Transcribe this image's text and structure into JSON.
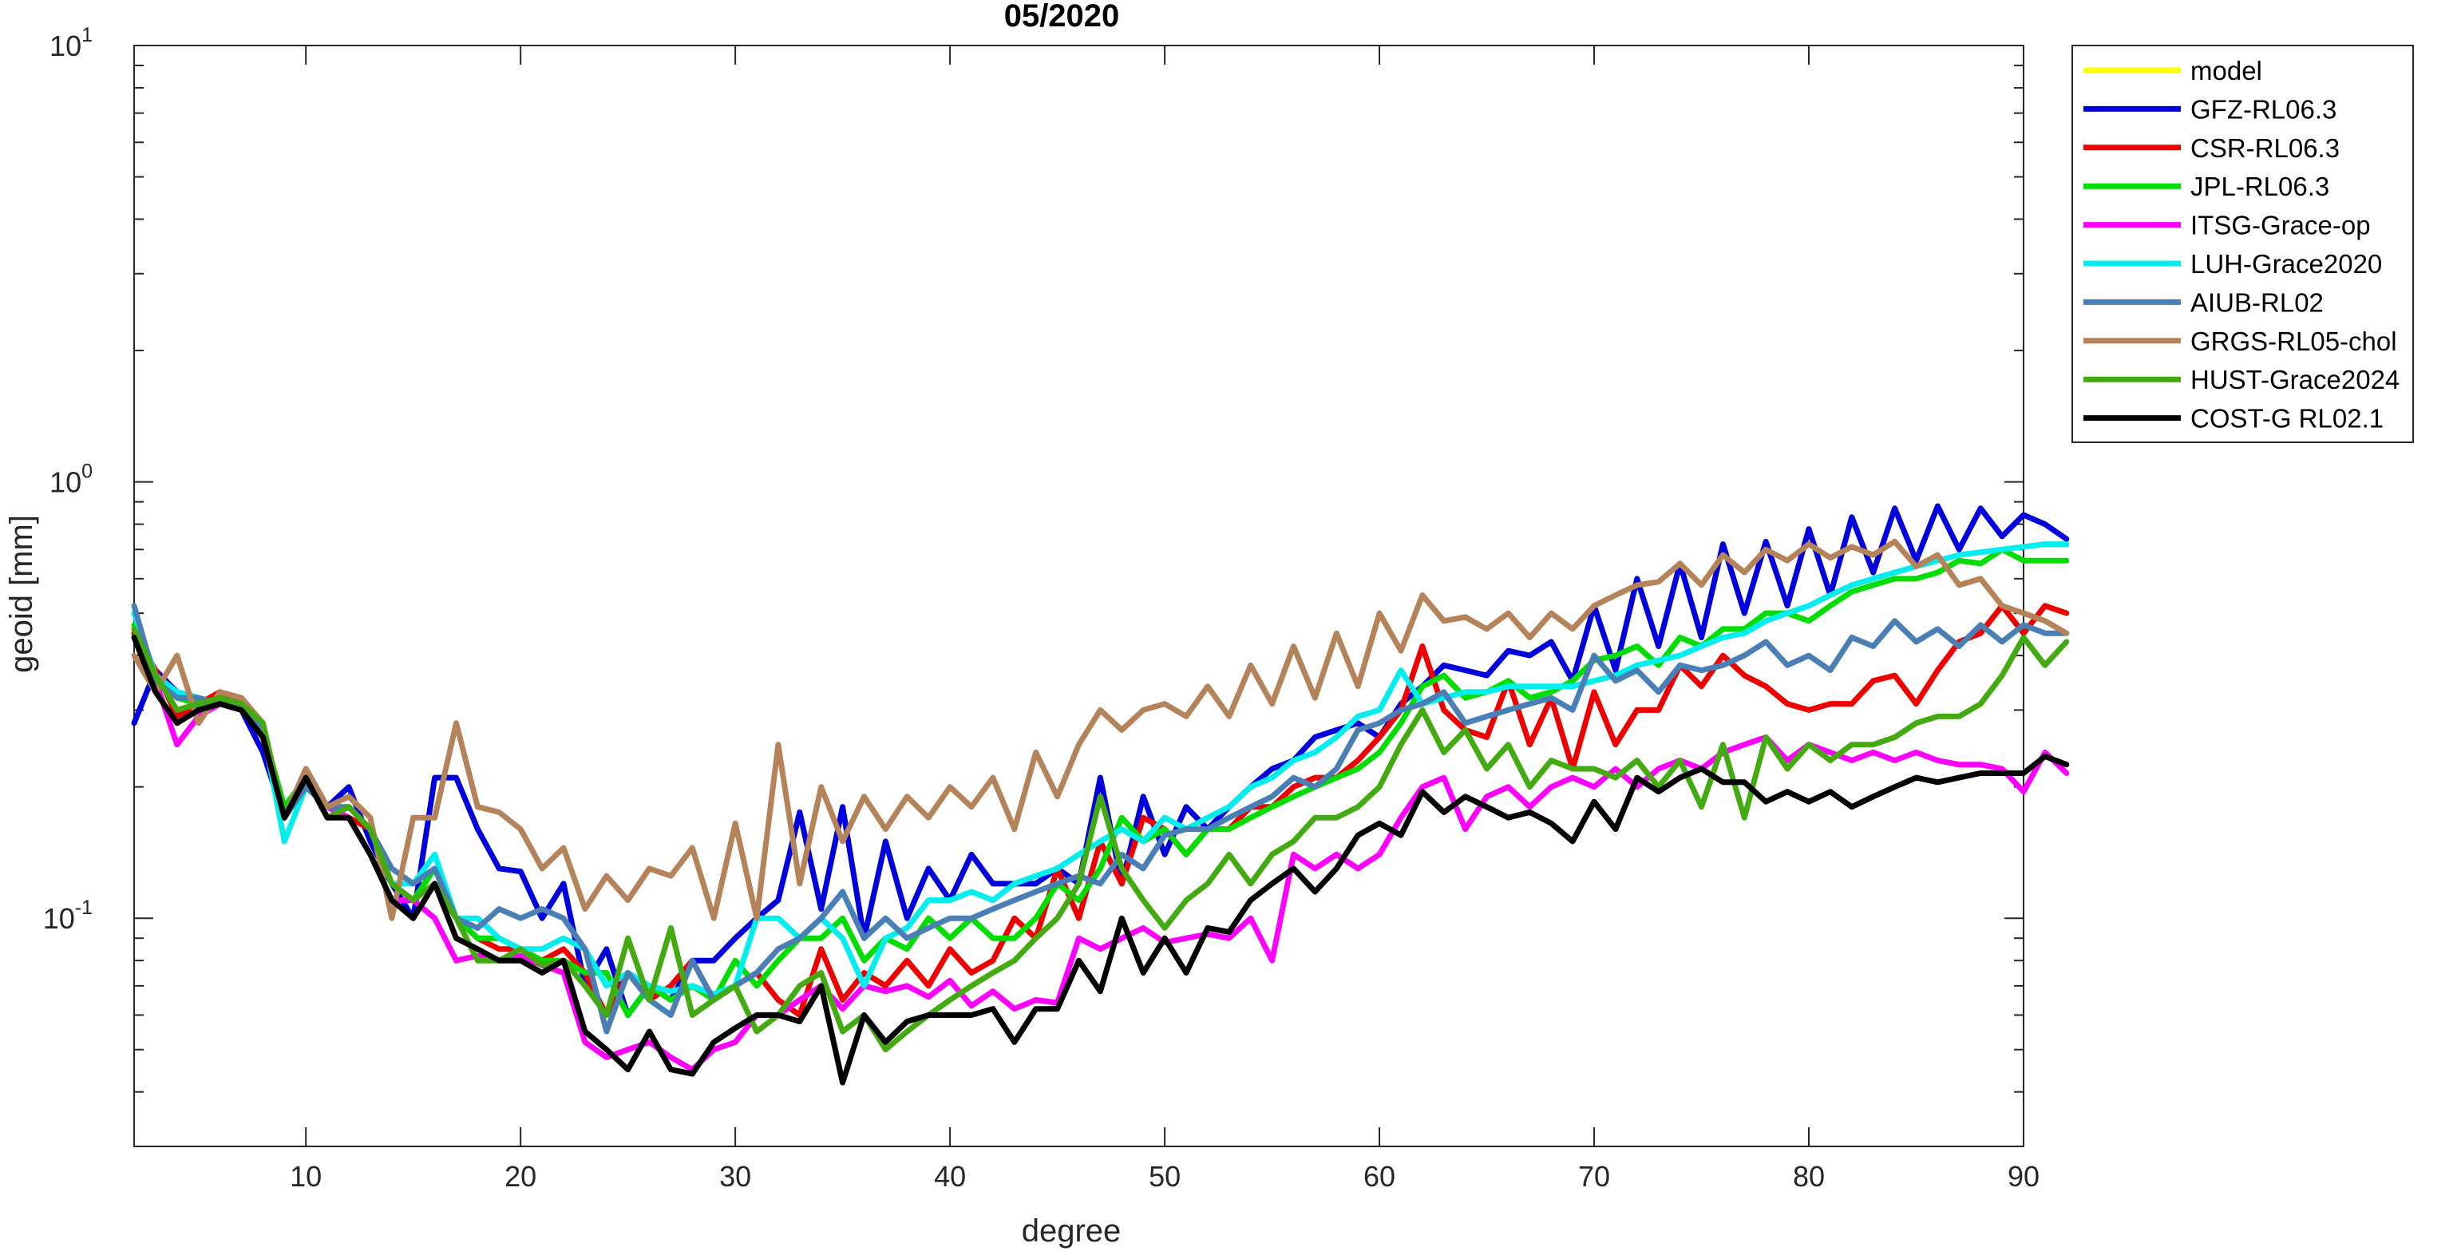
{
  "chart_data": {
    "type": "line",
    "title": "05/2020",
    "xlabel": "degree",
    "ylabel": "geoid [mm]",
    "xlim": [
      2,
      90
    ],
    "ylim": [
      0.03,
      10
    ],
    "yscale": "log",
    "xticks": [
      10,
      20,
      30,
      40,
      50,
      60,
      70,
      80,
      90
    ],
    "yticks": [
      {
        "value": 0.1,
        "base": "10",
        "exp": "-1"
      },
      {
        "value": 1,
        "base": "10",
        "exp": "0"
      },
      {
        "value": 10,
        "base": "10",
        "exp": "1"
      }
    ],
    "grid": false,
    "legend_position": "outside-top-right",
    "x_start": 2,
    "series": [
      {
        "name": "model",
        "color": "#ffff00",
        "values": []
      },
      {
        "name": "GFZ-RL06.3",
        "color": "#0000dd",
        "values": [
          0.28,
          0.37,
          0.33,
          0.32,
          0.31,
          0.3,
          0.24,
          0.17,
          0.22,
          0.18,
          0.2,
          0.15,
          0.12,
          0.1,
          0.21,
          0.21,
          0.16,
          0.13,
          0.128,
          0.1,
          0.12,
          0.07,
          0.085,
          0.06,
          0.07,
          0.065,
          0.08,
          0.08,
          0.09,
          0.1,
          0.11,
          0.175,
          0.105,
          0.18,
          0.09,
          0.15,
          0.1,
          0.13,
          0.11,
          0.14,
          0.12,
          0.12,
          0.12,
          0.13,
          0.12,
          0.21,
          0.12,
          0.19,
          0.14,
          0.18,
          0.16,
          0.18,
          0.2,
          0.22,
          0.23,
          0.26,
          0.27,
          0.28,
          0.26,
          0.31,
          0.34,
          0.38,
          0.37,
          0.36,
          0.41,
          0.4,
          0.43,
          0.35,
          0.52,
          0.37,
          0.6,
          0.42,
          0.65,
          0.44,
          0.72,
          0.5,
          0.73,
          0.52,
          0.78,
          0.55,
          0.83,
          0.62,
          0.87,
          0.66,
          0.88,
          0.7,
          0.87,
          0.75,
          0.84,
          0.8,
          0.74
        ]
      },
      {
        "name": "CSR-RL06.3",
        "color": "#ee0000",
        "values": [
          0.45,
          0.37,
          0.29,
          0.31,
          0.33,
          0.31,
          0.26,
          0.17,
          0.21,
          0.18,
          0.17,
          0.16,
          0.12,
          0.11,
          0.12,
          0.1,
          0.09,
          0.085,
          0.085,
          0.08,
          0.085,
          0.075,
          0.06,
          0.075,
          0.065,
          0.07,
          0.08,
          0.065,
          0.07,
          0.075,
          0.065,
          0.06,
          0.085,
          0.065,
          0.075,
          0.07,
          0.08,
          0.07,
          0.085,
          0.075,
          0.08,
          0.1,
          0.09,
          0.13,
          0.1,
          0.15,
          0.12,
          0.17,
          0.16,
          0.14,
          0.16,
          0.16,
          0.18,
          0.18,
          0.2,
          0.21,
          0.21,
          0.23,
          0.26,
          0.3,
          0.42,
          0.3,
          0.27,
          0.26,
          0.35,
          0.25,
          0.32,
          0.22,
          0.33,
          0.25,
          0.3,
          0.3,
          0.38,
          0.34,
          0.4,
          0.36,
          0.34,
          0.31,
          0.3,
          0.31,
          0.31,
          0.35,
          0.36,
          0.31,
          0.37,
          0.43,
          0.45,
          0.52,
          0.45,
          0.52,
          0.5
        ]
      },
      {
        "name": "JPL-RL06.3",
        "color": "#00dd00",
        "values": [
          0.47,
          0.36,
          0.32,
          0.31,
          0.31,
          0.3,
          0.27,
          0.18,
          0.21,
          0.17,
          0.18,
          0.16,
          0.12,
          0.11,
          0.13,
          0.1,
          0.09,
          0.09,
          0.085,
          0.08,
          0.08,
          0.075,
          0.075,
          0.06,
          0.07,
          0.065,
          0.07,
          0.065,
          0.08,
          0.07,
          0.08,
          0.09,
          0.09,
          0.1,
          0.08,
          0.09,
          0.085,
          0.1,
          0.09,
          0.1,
          0.09,
          0.09,
          0.1,
          0.12,
          0.11,
          0.13,
          0.17,
          0.15,
          0.16,
          0.14,
          0.16,
          0.16,
          0.17,
          0.18,
          0.19,
          0.2,
          0.21,
          0.22,
          0.24,
          0.28,
          0.34,
          0.36,
          0.32,
          0.33,
          0.35,
          0.32,
          0.33,
          0.35,
          0.39,
          0.4,
          0.42,
          0.38,
          0.44,
          0.42,
          0.46,
          0.46,
          0.5,
          0.5,
          0.48,
          0.52,
          0.56,
          0.58,
          0.6,
          0.6,
          0.62,
          0.66,
          0.65,
          0.7,
          0.66,
          0.66,
          0.66
        ]
      },
      {
        "name": "ITSG-Grace-op",
        "color": "#ff00ff",
        "values": [
          0.44,
          0.35,
          0.25,
          0.29,
          0.31,
          0.3,
          0.26,
          0.17,
          0.2,
          0.18,
          0.17,
          0.14,
          0.11,
          0.11,
          0.1,
          0.08,
          0.082,
          0.08,
          0.082,
          0.078,
          0.075,
          0.052,
          0.048,
          0.05,
          0.052,
          0.048,
          0.045,
          0.05,
          0.052,
          0.06,
          0.06,
          0.065,
          0.07,
          0.062,
          0.07,
          0.068,
          0.07,
          0.066,
          0.072,
          0.063,
          0.068,
          0.062,
          0.065,
          0.064,
          0.09,
          0.085,
          0.09,
          0.095,
          0.088,
          0.09,
          0.092,
          0.09,
          0.1,
          0.08,
          0.14,
          0.13,
          0.14,
          0.13,
          0.14,
          0.17,
          0.2,
          0.21,
          0.16,
          0.19,
          0.2,
          0.18,
          0.2,
          0.21,
          0.2,
          0.22,
          0.2,
          0.22,
          0.23,
          0.22,
          0.24,
          0.25,
          0.26,
          0.23,
          0.25,
          0.24,
          0.23,
          0.24,
          0.23,
          0.24,
          0.23,
          0.225,
          0.225,
          0.22,
          0.195,
          0.24,
          0.215
        ]
      },
      {
        "name": "LUH-Grace2020",
        "color": "#00eeee",
        "values": [
          0.5,
          0.36,
          0.33,
          0.32,
          0.31,
          0.31,
          0.27,
          0.15,
          0.2,
          0.18,
          0.18,
          0.16,
          0.12,
          0.12,
          0.14,
          0.1,
          0.1,
          0.09,
          0.085,
          0.085,
          0.09,
          0.085,
          0.07,
          0.075,
          0.07,
          0.068,
          0.07,
          0.067,
          0.07,
          0.1,
          0.1,
          0.09,
          0.1,
          0.09,
          0.07,
          0.09,
          0.095,
          0.11,
          0.11,
          0.115,
          0.11,
          0.12,
          0.125,
          0.13,
          0.14,
          0.15,
          0.16,
          0.15,
          0.17,
          0.16,
          0.17,
          0.18,
          0.2,
          0.21,
          0.23,
          0.24,
          0.26,
          0.29,
          0.3,
          0.37,
          0.31,
          0.32,
          0.33,
          0.33,
          0.34,
          0.34,
          0.34,
          0.34,
          0.35,
          0.36,
          0.38,
          0.39,
          0.4,
          0.42,
          0.44,
          0.45,
          0.48,
          0.5,
          0.52,
          0.55,
          0.58,
          0.6,
          0.62,
          0.64,
          0.66,
          0.68,
          0.69,
          0.7,
          0.71,
          0.72,
          0.72
        ]
      },
      {
        "name": "AIUB-RL02",
        "color": "#4a7fb5",
        "values": [
          0.52,
          0.35,
          0.32,
          0.32,
          0.31,
          0.3,
          0.27,
          0.17,
          0.2,
          0.18,
          0.18,
          0.16,
          0.13,
          0.12,
          0.13,
          0.1,
          0.095,
          0.105,
          0.1,
          0.105,
          0.1,
          0.085,
          0.055,
          0.075,
          0.065,
          0.06,
          0.08,
          0.065,
          0.07,
          0.075,
          0.085,
          0.09,
          0.1,
          0.115,
          0.09,
          0.1,
          0.09,
          0.095,
          0.1,
          0.1,
          0.105,
          0.11,
          0.115,
          0.12,
          0.125,
          0.12,
          0.14,
          0.13,
          0.155,
          0.16,
          0.16,
          0.17,
          0.18,
          0.19,
          0.21,
          0.2,
          0.22,
          0.27,
          0.28,
          0.3,
          0.31,
          0.33,
          0.28,
          0.29,
          0.3,
          0.31,
          0.32,
          0.3,
          0.4,
          0.35,
          0.37,
          0.33,
          0.38,
          0.37,
          0.38,
          0.4,
          0.43,
          0.38,
          0.4,
          0.37,
          0.44,
          0.42,
          0.48,
          0.43,
          0.46,
          0.42,
          0.47,
          0.43,
          0.47,
          0.45,
          0.45
        ]
      },
      {
        "name": "GRGS-RL05-chol",
        "color": "#b5835a",
        "values": [
          0.4,
          0.33,
          0.4,
          0.28,
          0.33,
          0.32,
          0.28,
          0.17,
          0.22,
          0.18,
          0.19,
          0.17,
          0.1,
          0.17,
          0.17,
          0.28,
          0.18,
          0.175,
          0.16,
          0.13,
          0.145,
          0.105,
          0.125,
          0.11,
          0.13,
          0.125,
          0.145,
          0.1,
          0.165,
          0.1,
          0.25,
          0.12,
          0.2,
          0.15,
          0.19,
          0.16,
          0.19,
          0.17,
          0.2,
          0.18,
          0.21,
          0.16,
          0.24,
          0.19,
          0.25,
          0.3,
          0.27,
          0.3,
          0.31,
          0.29,
          0.34,
          0.29,
          0.38,
          0.31,
          0.42,
          0.32,
          0.45,
          0.34,
          0.5,
          0.41,
          0.55,
          0.48,
          0.49,
          0.46,
          0.5,
          0.44,
          0.5,
          0.46,
          0.52,
          0.55,
          0.58,
          0.59,
          0.65,
          0.58,
          0.68,
          0.62,
          0.7,
          0.66,
          0.72,
          0.67,
          0.71,
          0.68,
          0.73,
          0.64,
          0.68,
          0.58,
          0.6,
          0.52,
          0.5,
          0.48,
          0.45
        ]
      },
      {
        "name": "HUST-Grace2024",
        "color": "#44aa11",
        "values": [
          0.46,
          0.36,
          0.3,
          0.31,
          0.32,
          0.31,
          0.28,
          0.17,
          0.21,
          0.17,
          0.18,
          0.16,
          0.12,
          0.11,
          0.12,
          0.1,
          0.08,
          0.08,
          0.085,
          0.078,
          0.08,
          0.07,
          0.06,
          0.09,
          0.065,
          0.095,
          0.06,
          0.065,
          0.07,
          0.055,
          0.06,
          0.07,
          0.075,
          0.055,
          0.06,
          0.05,
          0.055,
          0.06,
          0.065,
          0.07,
          0.075,
          0.08,
          0.09,
          0.1,
          0.12,
          0.19,
          0.13,
          0.11,
          0.095,
          0.11,
          0.12,
          0.14,
          0.12,
          0.14,
          0.15,
          0.17,
          0.17,
          0.18,
          0.2,
          0.25,
          0.3,
          0.24,
          0.27,
          0.22,
          0.25,
          0.2,
          0.23,
          0.22,
          0.22,
          0.21,
          0.23,
          0.2,
          0.23,
          0.18,
          0.25,
          0.17,
          0.26,
          0.22,
          0.25,
          0.23,
          0.25,
          0.25,
          0.26,
          0.28,
          0.29,
          0.29,
          0.31,
          0.36,
          0.44,
          0.38,
          0.43
        ]
      },
      {
        "name": "COST-G RL02.1",
        "color": "#000000",
        "values": [
          0.44,
          0.33,
          0.28,
          0.3,
          0.31,
          0.3,
          0.26,
          0.17,
          0.21,
          0.17,
          0.17,
          0.14,
          0.11,
          0.1,
          0.12,
          0.09,
          0.085,
          0.08,
          0.08,
          0.075,
          0.08,
          0.055,
          0.05,
          0.045,
          0.055,
          0.045,
          0.044,
          0.052,
          0.056,
          0.06,
          0.06,
          0.058,
          0.07,
          0.042,
          0.06,
          0.052,
          0.058,
          0.06,
          0.06,
          0.06,
          0.062,
          0.052,
          0.062,
          0.062,
          0.08,
          0.068,
          0.1,
          0.075,
          0.09,
          0.075,
          0.095,
          0.093,
          0.11,
          0.12,
          0.13,
          0.115,
          0.13,
          0.155,
          0.165,
          0.155,
          0.195,
          0.175,
          0.19,
          0.18,
          0.17,
          0.175,
          0.165,
          0.15,
          0.185,
          0.16,
          0.21,
          0.195,
          0.21,
          0.22,
          0.205,
          0.205,
          0.185,
          0.195,
          0.185,
          0.195,
          0.18,
          0.19,
          0.2,
          0.21,
          0.205,
          0.21,
          0.215,
          0.215,
          0.215,
          0.235,
          0.225
        ]
      }
    ]
  }
}
